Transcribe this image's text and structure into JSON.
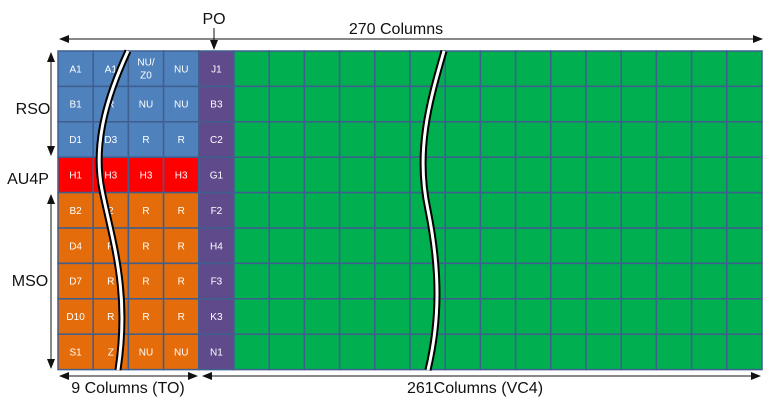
{
  "labels": {
    "po": "PO",
    "total_columns": "270 Columns",
    "to_columns": "9 Columns (TO)",
    "vc4_columns": "261Columns (VC4)",
    "rso": "RSO",
    "au4p": "AU4P",
    "mso": "MSO"
  },
  "colors": {
    "rso": "#4f81bd",
    "au4p": "#ff0000",
    "mso": "#e46c0a",
    "po": "#5f4b8b",
    "payload": "#00b050",
    "grid": "#3f5f8f"
  },
  "rows": [
    {
      "section": "rso",
      "cells": [
        "A1",
        "A1",
        "NU/\nZ0",
        "NU"
      ],
      "po": "J1"
    },
    {
      "section": "rso",
      "cells": [
        "B1",
        "R",
        "NU",
        "NU"
      ],
      "po": "B3"
    },
    {
      "section": "rso",
      "cells": [
        "D1",
        "D3",
        "R",
        "R"
      ],
      "po": "C2"
    },
    {
      "section": "au4p",
      "cells": [
        "H1",
        "H3",
        "H3",
        "H3"
      ],
      "po": "G1"
    },
    {
      "section": "mso",
      "cells": [
        "B2",
        "2",
        "R",
        "R"
      ],
      "po": "F2"
    },
    {
      "section": "mso",
      "cells": [
        "D4",
        "R",
        "R",
        "R"
      ],
      "po": "H4"
    },
    {
      "section": "mso",
      "cells": [
        "D7",
        "R",
        "R",
        "R"
      ],
      "po": "F3"
    },
    {
      "section": "mso",
      "cells": [
        "D10",
        "R",
        "R",
        "R"
      ],
      "po": "K3"
    },
    {
      "section": "mso",
      "cells": [
        "S1",
        "Z",
        "NU",
        "NU"
      ],
      "po": "N1"
    }
  ]
}
